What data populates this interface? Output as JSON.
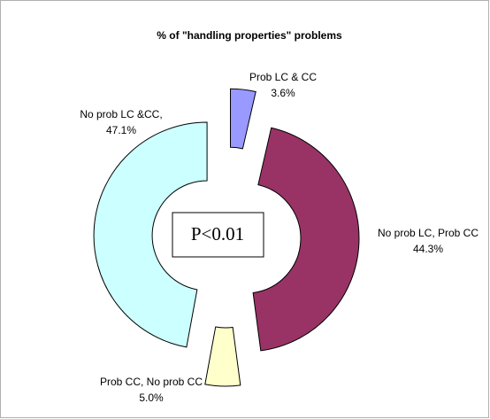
{
  "chart_data": {
    "type": "donut",
    "title": "% of \"handling properties\" problems",
    "categories": [
      "Prob LC & CC",
      "No prob LC, Prob CC",
      "Prob CC, No prob CC",
      "No prob LC &CC,"
    ],
    "values": [
      3.6,
      44.3,
      5.0,
      47.1
    ],
    "value_labels": [
      "3.6%",
      "44.3%",
      "5.0%",
      "47.1%"
    ],
    "colors": [
      "#9999ff",
      "#993366",
      "#ffffcc",
      "#ccffff"
    ],
    "annotation": "P<0.01"
  }
}
